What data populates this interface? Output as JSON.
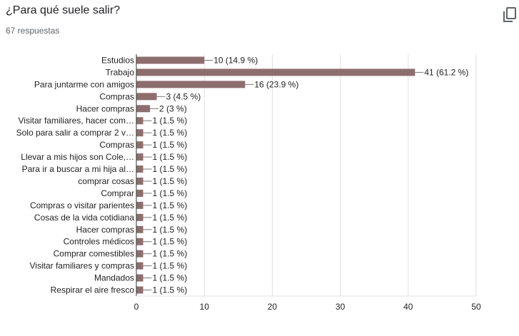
{
  "question": "¿Para qué suele salir?",
  "response_count": "67 respuestas",
  "icons": {
    "copy": "copy-icon"
  },
  "colors": {
    "bar": "#8d6e6e",
    "grid": "#e0e0e0",
    "axis": "#333333",
    "text": "#222222"
  },
  "chart_data": {
    "type": "bar",
    "orientation": "horizontal",
    "title": "",
    "xlabel": "",
    "ylabel": "",
    "xlim": [
      0,
      50
    ],
    "xticks": [
      0,
      10,
      20,
      30,
      40,
      50
    ],
    "grid": true,
    "categories": [
      "Estudios",
      "Trabajo",
      "Para juntarme con amigos",
      "Compras",
      "Hacer compras",
      "Visitar familiares, hacer com…",
      "Solo para salir a comprar 2 v…",
      "Compras",
      "Llevar a mis hijos son Cole,…",
      "Para ir a buscar a mi hija al…",
      "comprar cosas",
      "Comprar",
      "Compras o visitar parientes",
      "Cosas de la vida cotidiana",
      "Hacer compras",
      "Controles médicos",
      "Comprar comestibles",
      "Visitar familiares y compras",
      "Mandados",
      "Respirar el aire fresco"
    ],
    "values": [
      10,
      41,
      16,
      3,
      2,
      1,
      1,
      1,
      1,
      1,
      1,
      1,
      1,
      1,
      1,
      1,
      1,
      1,
      1,
      1
    ],
    "data_labels": [
      "10 (14.9 %)",
      "41 (61.2 %)",
      "16 (23.9 %)",
      "3 (4.5 %)",
      "2 (3 %)",
      "1 (1.5 %)",
      "1 (1.5 %)",
      "1 (1.5 %)",
      "1 (1.5 %)",
      "1 (1.5 %)",
      "1 (1.5 %)",
      "1 (1.5 %)",
      "1 (1.5 %)",
      "1 (1.5 %)",
      "1 (1.5 %)",
      "1 (1.5 %)",
      "1 (1.5 %)",
      "1 (1.5 %)",
      "1 (1.5 %)",
      "1 (1.5 %)"
    ]
  }
}
